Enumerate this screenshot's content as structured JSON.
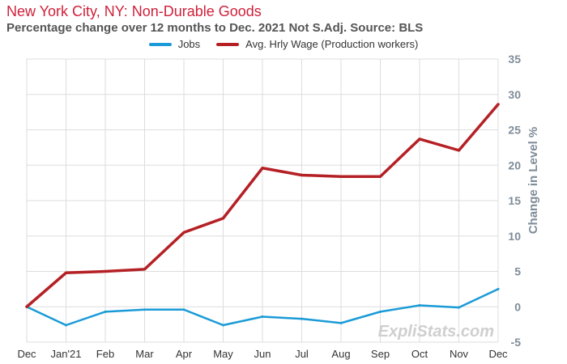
{
  "chart_data": {
    "type": "line",
    "title": "New York City, NY:  Non-Durable Goods",
    "subtitle": "Percentage change over 12 months to Dec. 2021 Not S.Adj.  Source: BLS",
    "ylabel": "Change in Level  %",
    "watermark": "ExpliStats.com",
    "categories": [
      "Dec",
      "Jan'21",
      "Feb",
      "Mar",
      "Apr",
      "May",
      "Jun",
      "Jul",
      "Aug",
      "Sep",
      "Oct",
      "Nov",
      "Dec"
    ],
    "ylim": [
      -5,
      35
    ],
    "yticks": [
      -5,
      0,
      5,
      10,
      15,
      20,
      25,
      30,
      35
    ],
    "grid": true,
    "legend_position": "top-center",
    "series": [
      {
        "name": "Jobs",
        "color": "#1a9bd7",
        "values": [
          0,
          -2.6,
          -0.7,
          -0.4,
          -0.4,
          -2.6,
          -1.4,
          -1.7,
          -2.3,
          -0.7,
          0.2,
          -0.1,
          2.5
        ]
      },
      {
        "name": "Avg. Hrly Wage (Production workers)",
        "color": "#b52025",
        "values": [
          0,
          4.8,
          5.0,
          5.3,
          10.5,
          12.5,
          19.6,
          18.6,
          18.4,
          18.4,
          23.7,
          22.1,
          28.6
        ]
      }
    ]
  }
}
